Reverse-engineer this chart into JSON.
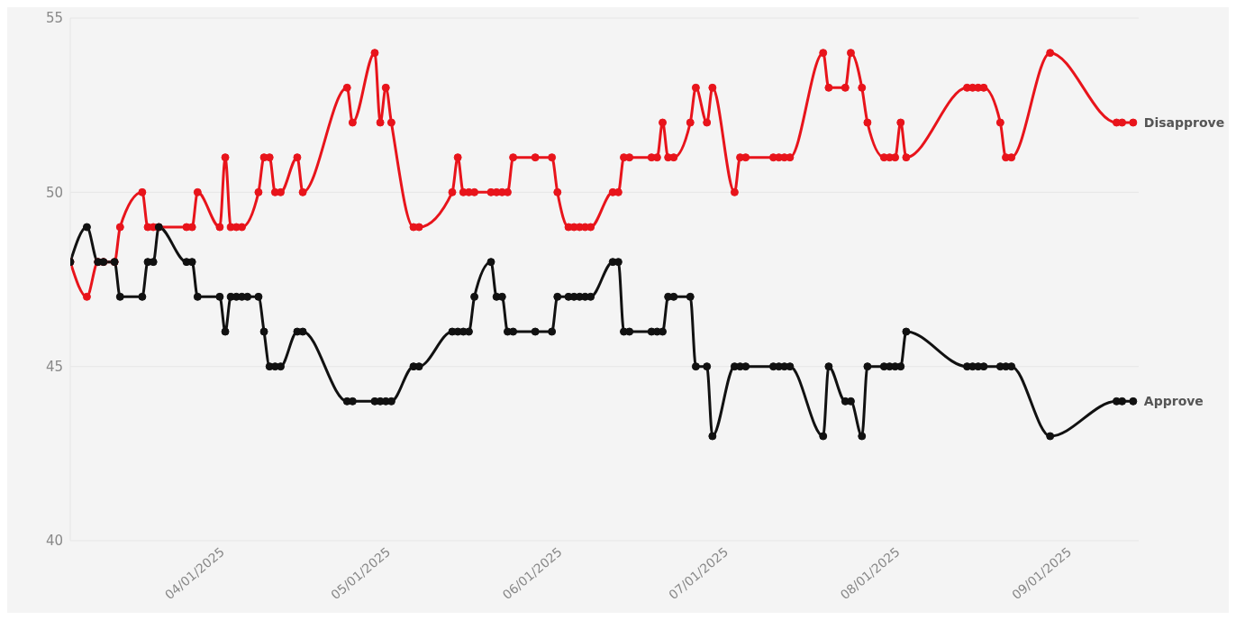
{
  "chart_data": {
    "type": "line",
    "xlim": [
      "2025-03-04",
      "2025-09-13"
    ],
    "xticks": [
      {
        "value": "2025-04-01",
        "label": "04/01/2025"
      },
      {
        "value": "2025-05-01",
        "label": "05/01/2025"
      },
      {
        "value": "2025-06-01",
        "label": "06/01/2025"
      },
      {
        "value": "2025-07-01",
        "label": "07/01/2025"
      },
      {
        "value": "2025-08-01",
        "label": "08/01/2025"
      },
      {
        "value": "2025-09-01",
        "label": "09/01/2025"
      }
    ],
    "ylim": [
      40,
      55
    ],
    "yticks": [
      40,
      45,
      50,
      55
    ],
    "grid": "y",
    "marker": "circle",
    "line_style": "solid",
    "series": [
      {
        "name": "Disapprove",
        "color": "#e8141b",
        "x": [
          "2025-03-04",
          "2025-03-07",
          "2025-03-09",
          "2025-03-10",
          "2025-03-12",
          "2025-03-13",
          "2025-03-17",
          "2025-03-18",
          "2025-03-19",
          "2025-03-20",
          "2025-03-25",
          "2025-03-26",
          "2025-03-27",
          "2025-03-31",
          "2025-04-01",
          "2025-04-02",
          "2025-04-03",
          "2025-04-04",
          "2025-04-07",
          "2025-04-08",
          "2025-04-09",
          "2025-04-10",
          "2025-04-11",
          "2025-04-14",
          "2025-04-15",
          "2025-04-23",
          "2025-04-24",
          "2025-04-28",
          "2025-04-29",
          "2025-04-30",
          "2025-05-01",
          "2025-05-05",
          "2025-05-06",
          "2025-05-12",
          "2025-05-13",
          "2025-05-14",
          "2025-05-15",
          "2025-05-16",
          "2025-05-19",
          "2025-05-20",
          "2025-05-21",
          "2025-05-22",
          "2025-05-23",
          "2025-05-27",
          "2025-05-30",
          "2025-05-31",
          "2025-06-02",
          "2025-06-03",
          "2025-06-04",
          "2025-06-05",
          "2025-06-06",
          "2025-06-10",
          "2025-06-11",
          "2025-06-12",
          "2025-06-13",
          "2025-06-17",
          "2025-06-18",
          "2025-06-19",
          "2025-06-20",
          "2025-06-21",
          "2025-06-24",
          "2025-06-25",
          "2025-06-27",
          "2025-06-28",
          "2025-07-02",
          "2025-07-03",
          "2025-07-04",
          "2025-07-09",
          "2025-07-10",
          "2025-07-11",
          "2025-07-12",
          "2025-07-18",
          "2025-07-19",
          "2025-07-22",
          "2025-07-23",
          "2025-07-25",
          "2025-07-26",
          "2025-07-29",
          "2025-07-30",
          "2025-07-31",
          "2025-08-01",
          "2025-08-02",
          "2025-08-13",
          "2025-08-14",
          "2025-08-15",
          "2025-08-16",
          "2025-08-19",
          "2025-08-20",
          "2025-08-21",
          "2025-08-28",
          "2025-09-09",
          "2025-09-10",
          "2025-09-12"
        ],
        "values": [
          48,
          47,
          48,
          48,
          48,
          49,
          50,
          49,
          49,
          49,
          49,
          49,
          50,
          49,
          51,
          49,
          49,
          49,
          50,
          51,
          51,
          50,
          50,
          51,
          50,
          53,
          52,
          54,
          52,
          53,
          52,
          49,
          49,
          50,
          51,
          50,
          50,
          50,
          50,
          50,
          50,
          50,
          51,
          51,
          51,
          50,
          49,
          49,
          49,
          49,
          49,
          50,
          50,
          51,
          51,
          51,
          51,
          52,
          51,
          51,
          52,
          53,
          52,
          53,
          50,
          51,
          51,
          51,
          51,
          51,
          51,
          54,
          53,
          53,
          54,
          53,
          52,
          51,
          51,
          51,
          52,
          51,
          53,
          53,
          53,
          53,
          52,
          51,
          51,
          54,
          52,
          52,
          52
        ]
      },
      {
        "name": "Approve",
        "color": "#111111",
        "x": [
          "2025-03-04",
          "2025-03-07",
          "2025-03-09",
          "2025-03-10",
          "2025-03-12",
          "2025-03-13",
          "2025-03-17",
          "2025-03-18",
          "2025-03-19",
          "2025-03-20",
          "2025-03-25",
          "2025-03-26",
          "2025-03-27",
          "2025-03-31",
          "2025-04-01",
          "2025-04-02",
          "2025-04-03",
          "2025-04-04",
          "2025-04-05",
          "2025-04-07",
          "2025-04-08",
          "2025-04-09",
          "2025-04-10",
          "2025-04-11",
          "2025-04-14",
          "2025-04-15",
          "2025-04-23",
          "2025-04-24",
          "2025-04-28",
          "2025-04-29",
          "2025-04-30",
          "2025-05-01",
          "2025-05-05",
          "2025-05-06",
          "2025-05-12",
          "2025-05-13",
          "2025-05-14",
          "2025-05-15",
          "2025-05-16",
          "2025-05-19",
          "2025-05-20",
          "2025-05-21",
          "2025-05-22",
          "2025-05-23",
          "2025-05-27",
          "2025-05-30",
          "2025-05-31",
          "2025-06-02",
          "2025-06-03",
          "2025-06-04",
          "2025-06-05",
          "2025-06-06",
          "2025-06-10",
          "2025-06-11",
          "2025-06-12",
          "2025-06-13",
          "2025-06-17",
          "2025-06-18",
          "2025-06-19",
          "2025-06-20",
          "2025-06-21",
          "2025-06-24",
          "2025-06-25",
          "2025-06-27",
          "2025-06-28",
          "2025-07-02",
          "2025-07-03",
          "2025-07-04",
          "2025-07-09",
          "2025-07-10",
          "2025-07-11",
          "2025-07-12",
          "2025-07-18",
          "2025-07-19",
          "2025-07-22",
          "2025-07-23",
          "2025-07-25",
          "2025-07-26",
          "2025-07-29",
          "2025-07-30",
          "2025-07-31",
          "2025-08-01",
          "2025-08-02",
          "2025-08-13",
          "2025-08-14",
          "2025-08-15",
          "2025-08-16",
          "2025-08-19",
          "2025-08-20",
          "2025-08-21",
          "2025-08-28",
          "2025-09-09",
          "2025-09-10",
          "2025-09-12"
        ],
        "values": [
          48,
          49,
          48,
          48,
          48,
          47,
          47,
          48,
          48,
          49,
          48,
          48,
          47,
          47,
          46,
          47,
          47,
          47,
          47,
          47,
          46,
          45,
          45,
          45,
          46,
          46,
          44,
          44,
          44,
          44,
          44,
          44,
          45,
          45,
          46,
          46,
          46,
          46,
          47,
          48,
          47,
          47,
          46,
          46,
          46,
          46,
          47,
          47,
          47,
          47,
          47,
          47,
          48,
          48,
          46,
          46,
          46,
          46,
          46,
          47,
          47,
          47,
          45,
          45,
          43,
          45,
          45,
          45,
          45,
          45,
          45,
          45,
          43,
          45,
          44,
          44,
          43,
          45,
          45,
          45,
          45,
          45,
          46,
          45,
          45,
          45,
          45,
          45,
          45,
          45,
          43,
          44,
          44,
          44
        ]
      }
    ]
  }
}
